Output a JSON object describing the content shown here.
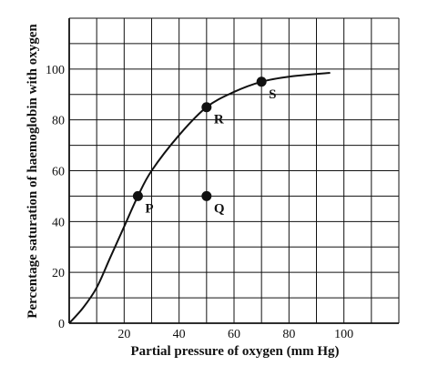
{
  "chart_data": {
    "type": "line",
    "title": "",
    "xlabel": "Partial pressure of oxygen (mm Hg)",
    "ylabel": "Percentage saturation of haemoglobin with oxygen",
    "xlim": [
      0,
      120
    ],
    "ylim": [
      0,
      120
    ],
    "x_ticks": [
      0,
      20,
      40,
      60,
      80,
      100
    ],
    "y_ticks": [
      0,
      20,
      40,
      60,
      80,
      100
    ],
    "grid": true,
    "grid_step": 10,
    "series": [
      {
        "x": [
          0,
          5,
          10,
          15,
          20,
          25,
          30,
          40,
          50,
          60,
          70,
          80,
          95
        ],
        "values": [
          0,
          6,
          14,
          26,
          38,
          50,
          60,
          74,
          85,
          91,
          95,
          97,
          98.5
        ]
      }
    ],
    "points": [
      {
        "label": "P",
        "x": 25,
        "y": 50
      },
      {
        "label": "Q",
        "x": 50,
        "y": 50
      },
      {
        "label": "R",
        "x": 50,
        "y": 85
      },
      {
        "label": "S",
        "x": 70,
        "y": 95
      }
    ]
  }
}
